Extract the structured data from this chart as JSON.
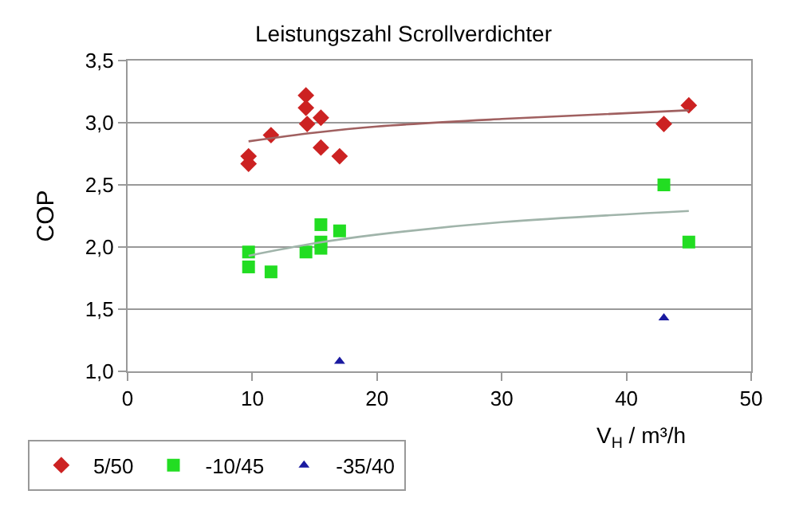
{
  "chart_data": {
    "type": "scatter",
    "title": "Leistungszahl Scrollverdichter",
    "xlabel": "V$_{H}$ / m³/h",
    "ylabel": "COP",
    "xlim": [
      0,
      50
    ],
    "xticks": [
      0,
      10,
      20,
      30,
      40,
      50
    ],
    "ylim": [
      1.0,
      3.5
    ],
    "yticks": [
      {
        "value": 1.0,
        "label": "1,0"
      },
      {
        "value": 1.5,
        "label": "1,5"
      },
      {
        "value": 2.0,
        "label": "2,0"
      },
      {
        "value": 2.5,
        "label": "2,5"
      },
      {
        "value": 3.0,
        "label": "3,0"
      },
      {
        "value": 3.5,
        "label": "3,5"
      }
    ],
    "grid": "y",
    "legend": "bottom left",
    "series": [
      {
        "name": "5/50",
        "color": "#cc2222",
        "marker": "diamond",
        "x": [
          9.7,
          9.7,
          11.5,
          14.3,
          14.3,
          14.4,
          15.5,
          15.5,
          17,
          43,
          45
        ],
        "values": [
          2.73,
          2.67,
          2.9,
          3.22,
          3.12,
          2.99,
          3.04,
          2.8,
          2.73,
          2.99,
          3.14
        ]
      },
      {
        "name": "-10/45",
        "color": "#22dd22",
        "marker": "square",
        "x": [
          9.7,
          9.7,
          11.5,
          14.3,
          15.5,
          15.5,
          15.5,
          17,
          43,
          45
        ],
        "values": [
          1.96,
          1.84,
          1.8,
          1.96,
          2.18,
          2.04,
          1.99,
          2.13,
          2.5,
          2.04
        ]
      },
      {
        "name": "-35/40",
        "color": "#1a1aa0",
        "marker": "triangle",
        "x": [
          17,
          43
        ],
        "values": [
          1.08,
          1.43
        ]
      },
      {
        "type": "line",
        "color": "#a06060",
        "x": [
          9.7,
          15,
          20,
          30,
          45
        ],
        "values": [
          2.85,
          2.92,
          2.97,
          3.03,
          3.1
        ]
      },
      {
        "type": "line",
        "color": "#a0b4aa",
        "x": [
          9.7,
          15,
          20,
          30,
          45
        ],
        "values": [
          1.93,
          2.03,
          2.1,
          2.2,
          2.29
        ]
      }
    ]
  }
}
